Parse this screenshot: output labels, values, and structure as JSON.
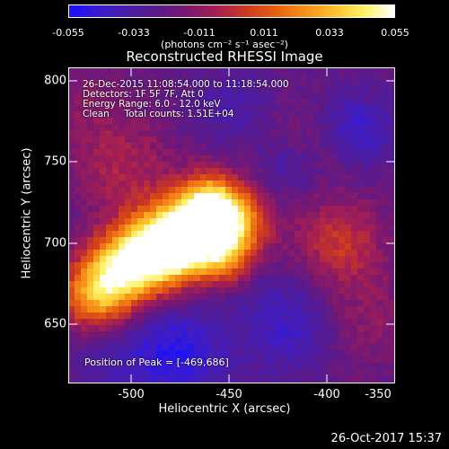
{
  "colorbar": {
    "ticks": [
      "-0.055",
      "-0.033",
      "-0.011",
      "0.011",
      "0.033",
      "0.055"
    ],
    "units": "(photons cm⁻² s⁻¹ asec⁻²)",
    "colors": [
      "#1a10ff",
      "#3a1bd0",
      "#4a1da8",
      "#5a1a8a",
      "#7a1870",
      "#a51f52",
      "#cc3a1f",
      "#e86010",
      "#f7901a",
      "#ffc22a",
      "#fff36a",
      "#ffffff"
    ]
  },
  "title": "Reconstructed RHESSI Image",
  "info": {
    "time": "26-Dec-2015 11:08:54.000 to 11:18:54.000",
    "detectors": "Detectors: 1F 5F 7F, Att 0",
    "energy": "Energy Range: 6.0 - 12.0 keV",
    "clean": "Clean     Total counts: 1.51E+04"
  },
  "peak": "Position of Peak = [-469,686]",
  "axes": {
    "xlabel": "Heliocentric X (arcsec)",
    "ylabel": "Heliocentric Y (arcsec)",
    "xticks": [
      "-500",
      "-450",
      "-400",
      "-350"
    ],
    "yticks": [
      "800",
      "750",
      "700",
      "650"
    ]
  },
  "footer": "26-Oct-2017 15:37"
}
